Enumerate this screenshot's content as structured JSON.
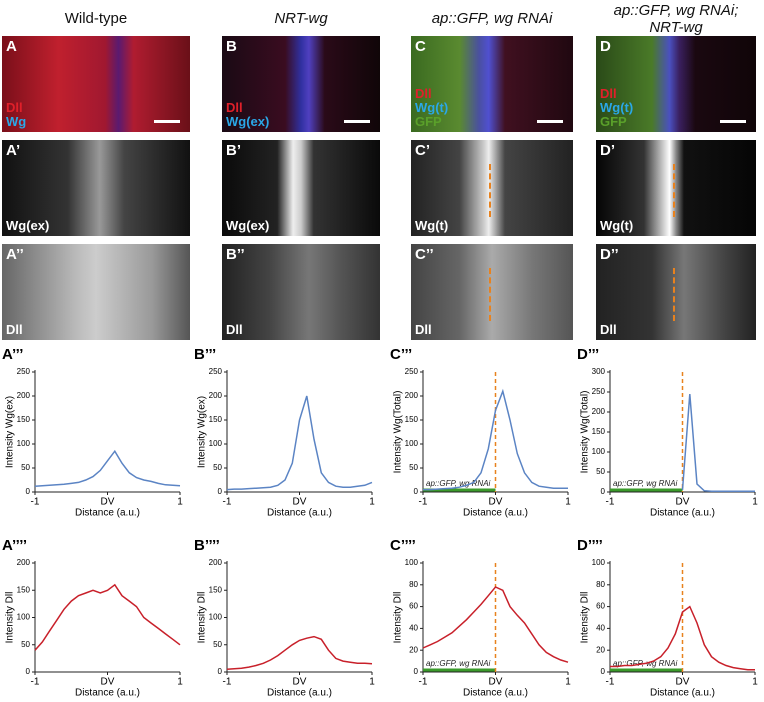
{
  "columns": [
    {
      "title": [
        "Wild-type"
      ],
      "italic": false
    },
    {
      "title": [
        "NRT-wg"
      ],
      "italic": true
    },
    {
      "title": [
        "ap::GFP, wg RNAi"
      ],
      "italic": true
    },
    {
      "title": [
        "ap::GFP, wg RNAi;",
        "NRT-wg"
      ],
      "italic": true
    }
  ],
  "panels": [
    [
      {
        "label": "A",
        "texts": [
          {
            "text": "Dll",
            "color": "#e0202a"
          },
          {
            "text": "Wg",
            "color": "#2aa8e8"
          }
        ]
      },
      {
        "label": "B",
        "texts": [
          {
            "text": "Dll",
            "color": "#e0202a"
          },
          {
            "text": "Wg(ex)",
            "color": "#2aa8e8"
          }
        ]
      },
      {
        "label": "C",
        "texts": [
          {
            "text": "Dll",
            "color": "#e0202a"
          },
          {
            "text": "Wg(t)",
            "color": "#2aa8e8"
          },
          {
            "text": "GFP",
            "color": "#5aa02a"
          }
        ]
      },
      {
        "label": "D",
        "texts": [
          {
            "text": "Dll",
            "color": "#e0202a"
          },
          {
            "text": "Wg(t)",
            "color": "#2aa8e8"
          },
          {
            "text": "GFP",
            "color": "#5aa02a"
          }
        ]
      }
    ],
    [
      {
        "label": "A’",
        "texts": [
          {
            "text": "Wg(ex)",
            "color": "#ffffff"
          }
        ]
      },
      {
        "label": "B’",
        "texts": [
          {
            "text": "Wg(ex)",
            "color": "#ffffff"
          }
        ]
      },
      {
        "label": "C’",
        "texts": [
          {
            "text": "Wg(t)",
            "color": "#ffffff"
          }
        ]
      },
      {
        "label": "D’",
        "texts": [
          {
            "text": "Wg(t)",
            "color": "#ffffff"
          }
        ]
      }
    ],
    [
      {
        "label": "A’’",
        "texts": [
          {
            "text": "Dll",
            "color": "#ffffff"
          }
        ]
      },
      {
        "label": "B’’",
        "texts": [
          {
            "text": "Dll",
            "color": "#ffffff"
          }
        ]
      },
      {
        "label": "C’’",
        "texts": [
          {
            "text": "Dll",
            "color": "#ffffff"
          }
        ]
      },
      {
        "label": "D’’",
        "texts": [
          {
            "text": "Dll",
            "color": "#ffffff"
          }
        ]
      }
    ]
  ],
  "chart_data": [
    {
      "type": "line",
      "panel_label": "A’’’",
      "ylabel": "Intensity  Wg(ex)",
      "xlabel": "Distance (a.u.)",
      "color": "#5b84c4",
      "xlim": [
        -1,
        1
      ],
      "xticks": [
        -1,
        {
          "value": 0,
          "label": "DV"
        },
        1
      ],
      "ylim": [
        0,
        250
      ],
      "yticks": [
        0,
        50,
        100,
        150,
        200,
        250
      ],
      "x": [
        -1,
        -0.9,
        -0.8,
        -0.7,
        -0.6,
        -0.5,
        -0.4,
        -0.3,
        -0.2,
        -0.1,
        0,
        0.1,
        0.2,
        0.3,
        0.4,
        0.5,
        0.6,
        0.7,
        0.8,
        0.9,
        1
      ],
      "values": [
        12,
        13,
        14,
        15,
        16,
        18,
        20,
        25,
        32,
        45,
        65,
        85,
        60,
        40,
        30,
        25,
        22,
        18,
        15,
        14,
        13
      ]
    },
    {
      "type": "line",
      "panel_label": "B’’’",
      "ylabel": "Intensity  Wg(ex)",
      "xlabel": "Distance (a.u.)",
      "color": "#5b84c4",
      "xlim": [
        -1,
        1
      ],
      "xticks": [
        -1,
        {
          "value": 0,
          "label": "DV"
        },
        1
      ],
      "ylim": [
        0,
        250
      ],
      "yticks": [
        0,
        50,
        100,
        150,
        200,
        250
      ],
      "x": [
        -1,
        -0.9,
        -0.8,
        -0.7,
        -0.6,
        -0.5,
        -0.4,
        -0.3,
        -0.2,
        -0.1,
        0,
        0.1,
        0.2,
        0.3,
        0.4,
        0.5,
        0.6,
        0.7,
        0.8,
        0.9,
        1
      ],
      "values": [
        5,
        6,
        6,
        7,
        8,
        9,
        10,
        14,
        25,
        60,
        150,
        200,
        110,
        40,
        20,
        12,
        10,
        10,
        12,
        14,
        20
      ]
    },
    {
      "type": "line",
      "panel_label": "C’’’",
      "ylabel": "Intensity  Wg(Total)",
      "xlabel": "Distance (a.u.)",
      "color": "#5b84c4",
      "xlim": [
        -1,
        1
      ],
      "xticks": [
        -1,
        {
          "value": 0,
          "label": "DV"
        },
        1
      ],
      "ylim": [
        0,
        250
      ],
      "yticks": [
        0,
        50,
        100,
        150,
        200,
        250
      ],
      "x": [
        -1,
        -0.9,
        -0.8,
        -0.7,
        -0.6,
        -0.5,
        -0.4,
        -0.3,
        -0.2,
        -0.1,
        0,
        0.1,
        0.2,
        0.3,
        0.4,
        0.5,
        0.6,
        0.7,
        0.8,
        0.9,
        1
      ],
      "values": [
        5,
        5,
        6,
        7,
        8,
        10,
        14,
        20,
        40,
        90,
        170,
        210,
        150,
        80,
        40,
        20,
        12,
        10,
        8,
        8,
        8
      ],
      "vline": {
        "x": 0,
        "color": "#e8821e"
      },
      "annotation": {
        "text": "ap::GFP, wg RNAi",
        "span": [
          -1,
          0
        ],
        "color": "#3a9a2a"
      }
    },
    {
      "type": "line",
      "panel_label": "D’’’",
      "ylabel": "Intensity  Wg(Total)",
      "xlabel": "Distance (a.u.)",
      "color": "#5b84c4",
      "xlim": [
        -1,
        1
      ],
      "xticks": [
        -1,
        {
          "value": 0,
          "label": "DV"
        },
        1
      ],
      "ylim": [
        0,
        300
      ],
      "yticks": [
        0,
        50,
        100,
        150,
        200,
        250,
        300
      ],
      "x": [
        -1,
        -0.9,
        -0.8,
        -0.7,
        -0.6,
        -0.5,
        -0.4,
        -0.3,
        -0.2,
        -0.1,
        0,
        0.1,
        0.2,
        0.3,
        0.4,
        0.5,
        0.6,
        0.7,
        0.8,
        0.9,
        1
      ],
      "values": [
        null,
        null,
        null,
        null,
        null,
        null,
        null,
        null,
        null,
        null,
        5,
        245,
        20,
        3,
        2,
        2,
        2,
        2,
        2,
        2,
        2
      ],
      "vline": {
        "x": 0,
        "color": "#e8821e"
      },
      "annotation": {
        "text": "ap::GFP, wg RNAi",
        "span": [
          -1,
          0
        ],
        "color": "#3a9a2a"
      }
    },
    {
      "type": "line",
      "panel_label": "A’’’’",
      "ylabel": "Intensity Dll",
      "xlabel": "Distance (a.u.)",
      "color": "#c8202a",
      "xlim": [
        -1,
        1
      ],
      "xticks": [
        -1,
        {
          "value": 0,
          "label": "DV"
        },
        1
      ],
      "ylim": [
        0,
        200
      ],
      "yticks": [
        0,
        50,
        100,
        150,
        200
      ],
      "x": [
        -1,
        -0.9,
        -0.8,
        -0.7,
        -0.6,
        -0.5,
        -0.4,
        -0.3,
        -0.2,
        -0.1,
        0,
        0.1,
        0.2,
        0.3,
        0.4,
        0.5,
        0.6,
        0.7,
        0.8,
        0.9,
        1
      ],
      "values": [
        40,
        55,
        75,
        95,
        115,
        130,
        140,
        145,
        150,
        145,
        150,
        160,
        140,
        130,
        120,
        100,
        90,
        80,
        70,
        60,
        50
      ]
    },
    {
      "type": "line",
      "panel_label": "B’’’’",
      "ylabel": "Intensity Dll",
      "xlabel": "Distance (a.u.)",
      "color": "#c8202a",
      "xlim": [
        -1,
        1
      ],
      "xticks": [
        -1,
        {
          "value": 0,
          "label": "DV"
        },
        1
      ],
      "ylim": [
        0,
        200
      ],
      "yticks": [
        0,
        50,
        100,
        150,
        200
      ],
      "x": [
        -1,
        -0.9,
        -0.8,
        -0.7,
        -0.6,
        -0.5,
        -0.4,
        -0.3,
        -0.2,
        -0.1,
        0,
        0.1,
        0.2,
        0.3,
        0.4,
        0.5,
        0.6,
        0.7,
        0.8,
        0.9,
        1
      ],
      "values": [
        5,
        6,
        7,
        9,
        12,
        16,
        22,
        30,
        40,
        50,
        58,
        62,
        65,
        60,
        40,
        25,
        20,
        18,
        16,
        16,
        15
      ]
    },
    {
      "type": "line",
      "panel_label": "C’’’’",
      "ylabel": "Intensity Dll",
      "xlabel": "Distance (a.u.)",
      "color": "#c8202a",
      "xlim": [
        -1,
        1
      ],
      "xticks": [
        -1,
        {
          "value": 0,
          "label": "DV"
        },
        1
      ],
      "ylim": [
        0,
        100
      ],
      "yticks": [
        0,
        20,
        40,
        60,
        80,
        100
      ],
      "x": [
        -1,
        -0.9,
        -0.8,
        -0.7,
        -0.6,
        -0.5,
        -0.4,
        -0.3,
        -0.2,
        -0.1,
        0,
        0.1,
        0.2,
        0.3,
        0.4,
        0.5,
        0.6,
        0.7,
        0.8,
        0.9,
        1
      ],
      "values": [
        22,
        25,
        28,
        32,
        36,
        42,
        48,
        55,
        62,
        70,
        78,
        75,
        60,
        52,
        45,
        35,
        25,
        18,
        14,
        11,
        9
      ],
      "vline": {
        "x": 0,
        "color": "#e8821e"
      },
      "annotation": {
        "text": "ap::GFP, wg RNAi",
        "span": [
          -1,
          0
        ],
        "color": "#3a9a2a"
      }
    },
    {
      "type": "line",
      "panel_label": "D’’’’",
      "ylabel": "Intensity Dll",
      "xlabel": "Distance (a.u.)",
      "color": "#c8202a",
      "xlim": [
        -1,
        1
      ],
      "xticks": [
        -1,
        {
          "value": 0,
          "label": "DV"
        },
        1
      ],
      "ylim": [
        0,
        100
      ],
      "yticks": [
        0,
        20,
        40,
        60,
        80,
        100
      ],
      "x": [
        -1,
        -0.9,
        -0.8,
        -0.7,
        -0.6,
        -0.5,
        -0.4,
        -0.3,
        -0.2,
        -0.1,
        0,
        0.1,
        0.2,
        0.3,
        0.4,
        0.5,
        0.6,
        0.7,
        0.8,
        0.9,
        1
      ],
      "values": [
        5,
        5,
        6,
        6,
        7,
        8,
        10,
        14,
        22,
        35,
        55,
        60,
        45,
        25,
        14,
        9,
        6,
        4,
        3,
        2,
        2
      ],
      "vline": {
        "x": 0,
        "color": "#e8821e"
      },
      "annotation": {
        "text": "ap::GFP, wg RNAi",
        "span": [
          -1,
          0
        ],
        "color": "#3a9a2a"
      }
    }
  ]
}
